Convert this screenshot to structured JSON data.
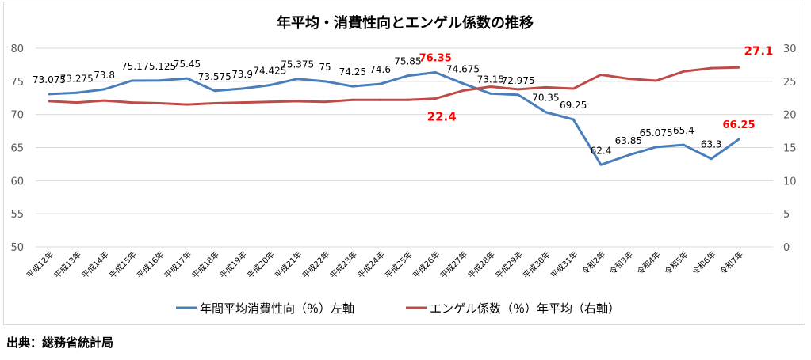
{
  "chart_data": {
    "type": "line",
    "title": "年平均・消費性向とエンゲル係数の推移",
    "categories": [
      "平成12年",
      "平成13年",
      "平成14年",
      "平成15年",
      "平成16年",
      "平成17年",
      "平成18年",
      "平成19年",
      "平成20年",
      "平成21年",
      "平成22年",
      "平成23年",
      "平成24年",
      "平成25年",
      "平成26年",
      "平成27年",
      "平成28年",
      "平成29年",
      "平成30年",
      "平成31年",
      "令和2年",
      "令和3年",
      "令和4年",
      "令和5年",
      "令和6年",
      "令和7年"
    ],
    "y_left": {
      "range": [
        50,
        80
      ],
      "ticks": [
        50,
        55,
        60,
        65,
        70,
        75,
        80
      ]
    },
    "y_right": {
      "range": [
        0,
        30
      ],
      "ticks": [
        0,
        5,
        10,
        15,
        20,
        25,
        30
      ]
    },
    "grid": true,
    "legend_position": "bottom",
    "series": [
      {
        "name": "年間平均消費性向（％）左軸",
        "axis": "left",
        "color": "#4a7ebb",
        "values": [
          73.075,
          73.275,
          73.8,
          75.1,
          75.125,
          75.45,
          73.575,
          73.9,
          74.425,
          75.375,
          75,
          74.25,
          74.6,
          75.85,
          76.35,
          74.675,
          73.15,
          72.975,
          70.35,
          69.25,
          62.4,
          63.85,
          65.075,
          65.4,
          63.3,
          66.25
        ],
        "labels": [
          "73.075",
          "73.275",
          "73.8",
          "75.1",
          "75.125",
          "75.45",
          "73.575",
          "73.9",
          "74.425",
          "75.375",
          "75",
          "74.25",
          "74.6",
          "75.85",
          "76.35",
          "74.675",
          "73.15",
          "72.975",
          "70.35",
          "69.25",
          "62.4",
          "63.85",
          "65.075",
          "65.4",
          "63.3",
          "66.25"
        ],
        "highlight": [
          14,
          25
        ]
      },
      {
        "name": "エンゲル係数（％）年平均（右軸）",
        "axis": "right",
        "color": "#be4b48",
        "values": [
          22.0,
          21.8,
          22.1,
          21.8,
          21.7,
          21.5,
          21.7,
          21.8,
          21.9,
          22.0,
          21.9,
          22.2,
          22.2,
          22.2,
          22.4,
          23.6,
          24.2,
          23.8,
          24.1,
          23.9,
          26.0,
          25.4,
          25.1,
          26.5,
          27.0,
          27.1
        ],
        "labels": {
          "14": "22.4",
          "25": "27.1"
        }
      }
    ],
    "highlight_color": "#ff0000"
  },
  "source": "出典：総務省統計局"
}
